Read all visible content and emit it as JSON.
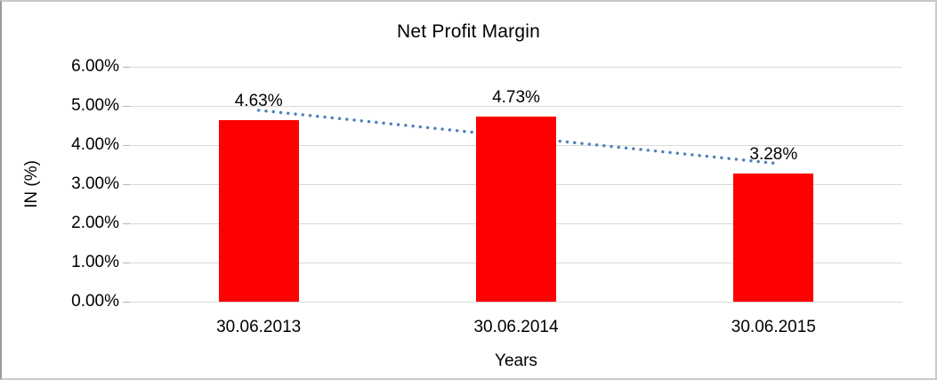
{
  "chart_data": {
    "type": "bar",
    "title": "Net Profit Margin",
    "xlabel": "Years",
    "ylabel": "IN (%)",
    "categories": [
      "30.06.2013",
      "30.06.2014",
      "30.06.2015"
    ],
    "series": [
      {
        "name": "Net Profit Margin",
        "values": [
          4.63,
          4.73,
          3.28
        ]
      }
    ],
    "data_labels": [
      "4.63%",
      "4.73%",
      "3.28%"
    ],
    "ylim": [
      0,
      6
    ],
    "ytick_interval": 1,
    "ytick_labels": [
      "0.00%",
      "1.00%",
      "2.00%",
      "3.00%",
      "4.00%",
      "5.00%",
      "6.00%"
    ],
    "grid": true,
    "legend": "none",
    "bar_color": "#ff0000",
    "gridline_color": "#d9d9d9",
    "trendline": {
      "type": "linear",
      "style": "dotted",
      "color": "#4f81bd"
    }
  }
}
